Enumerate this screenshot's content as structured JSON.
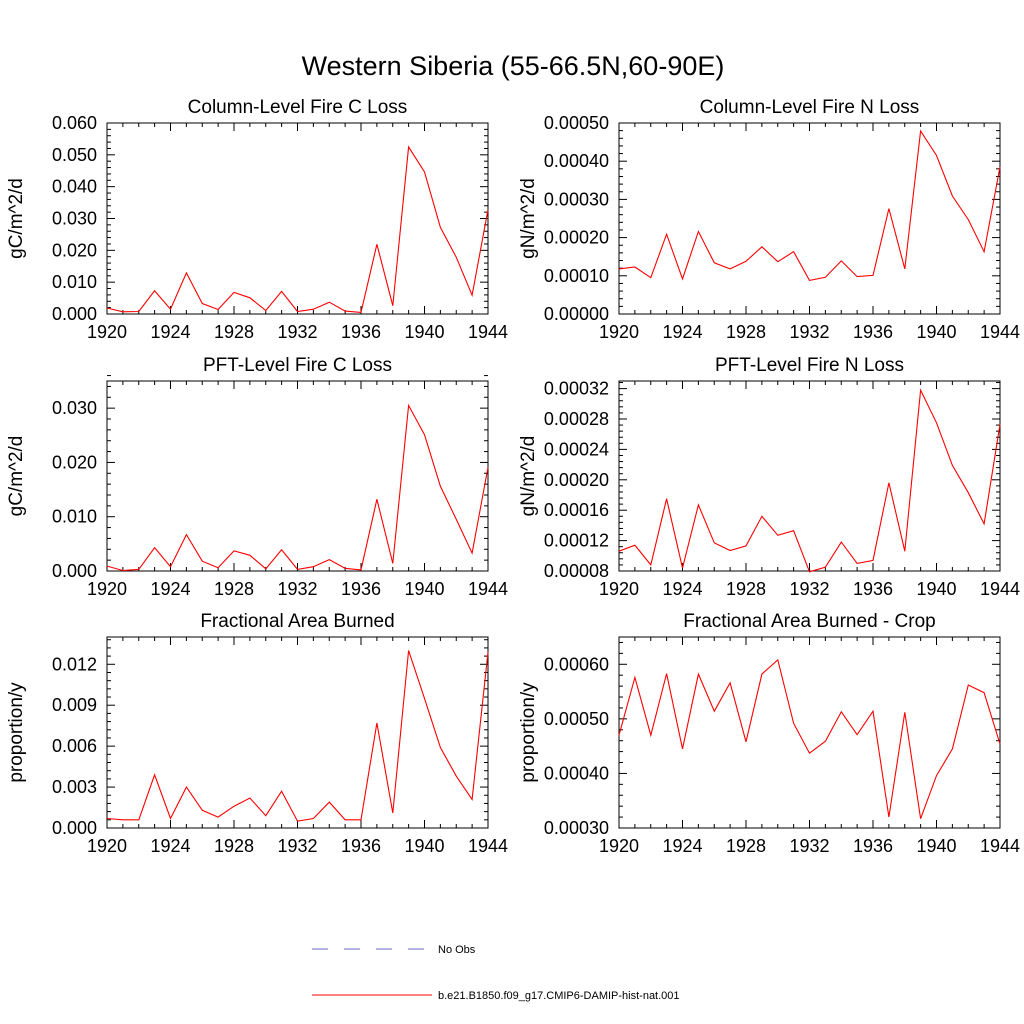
{
  "figure": {
    "title": "Western Siberia (55-66.5N,60-90E)"
  },
  "legend": [
    {
      "label": "No Obs",
      "color": "#6a6ac8",
      "dash": "dashed"
    },
    {
      "label": "b.e21.B1850.f09_g17.CMIP6-DAMIP-hist-nat.001",
      "color": "#ff0000",
      "dash": "solid"
    }
  ],
  "chart_data": [
    {
      "type": "line",
      "title": "Column-Level Fire C Loss",
      "ylabel": "gC/m^2/d",
      "xlabel": "",
      "xlim": [
        1920,
        1944
      ],
      "ylim": [
        0,
        0.06
      ],
      "xticks": [
        1920,
        1924,
        1928,
        1932,
        1936,
        1940,
        1944
      ],
      "yticks": [
        0,
        0.01,
        0.02,
        0.03,
        0.04,
        0.05,
        0.06
      ],
      "ytick_labels": [
        "0.000",
        "0.010",
        "0.020",
        "0.030",
        "0.040",
        "0.050",
        "0.060"
      ],
      "grid": false,
      "series": [
        {
          "name": "b.e21.B1850.f09_g17.CMIP6-DAMIP-hist-nat.001",
          "color": "#ff0000",
          "x": [
            1920,
            1921,
            1922,
            1923,
            1924,
            1925,
            1926,
            1927,
            1928,
            1929,
            1930,
            1931,
            1932,
            1933,
            1934,
            1935,
            1936,
            1937,
            1938,
            1939,
            1940,
            1941,
            1942,
            1943,
            1944
          ],
          "y": [
            0.0019,
            0.0007,
            0.0008,
            0.0073,
            0.0015,
            0.0129,
            0.0033,
            0.0014,
            0.0068,
            0.0051,
            0.0011,
            0.0071,
            0.0008,
            0.0015,
            0.0037,
            0.0009,
            0.0005,
            0.0219,
            0.0026,
            0.0525,
            0.0446,
            0.0272,
            0.0178,
            0.0059,
            0.0328
          ]
        }
      ]
    },
    {
      "type": "line",
      "title": "Column-Level Fire N Loss",
      "ylabel": "gN/m^2/d",
      "xlabel": "",
      "xlim": [
        1920,
        1944
      ],
      "ylim": [
        0,
        0.0005
      ],
      "xticks": [
        1920,
        1924,
        1928,
        1932,
        1936,
        1940,
        1944
      ],
      "yticks": [
        0,
        0.0001,
        0.0002,
        0.0003,
        0.0004,
        0.0005
      ],
      "ytick_labels": [
        "0.00000",
        "0.00010",
        "0.00020",
        "0.00030",
        "0.00040",
        "0.00050"
      ],
      "grid": false,
      "series": [
        {
          "name": "b.e21.B1850.f09_g17.CMIP6-DAMIP-hist-nat.001",
          "color": "#ff0000",
          "x": [
            1920,
            1921,
            1922,
            1923,
            1924,
            1925,
            1926,
            1927,
            1928,
            1929,
            1930,
            1931,
            1932,
            1933,
            1934,
            1935,
            1936,
            1937,
            1938,
            1939,
            1940,
            1941,
            1942,
            1943,
            1944
          ],
          "y": [
            0.000118,
            0.000123,
            9.5e-05,
            0.000209,
            9.2e-05,
            0.000216,
            0.000134,
            0.000118,
            0.000138,
            0.000176,
            0.000137,
            0.000163,
            8.8e-05,
            9.6e-05,
            0.000139,
            9.8e-05,
            0.000101,
            0.000276,
            0.000118,
            0.000479,
            0.000415,
            0.000309,
            0.000247,
            0.000163,
            0.000385
          ]
        }
      ]
    },
    {
      "type": "line",
      "title": "PFT-Level Fire C Loss",
      "ylabel": "gC/m^2/d",
      "xlabel": "",
      "xlim": [
        1920,
        1944
      ],
      "ylim": [
        0,
        0.035
      ],
      "xticks": [
        1920,
        1924,
        1928,
        1932,
        1936,
        1940,
        1944
      ],
      "yticks": [
        0,
        0.01,
        0.02,
        0.03
      ],
      "ytick_labels": [
        "0.000",
        "0.010",
        "0.020",
        "0.030"
      ],
      "grid": false,
      "series": [
        {
          "name": "b.e21.B1850.f09_g17.CMIP6-DAMIP-hist-nat.001",
          "color": "#ff0000",
          "x": [
            1920,
            1921,
            1922,
            1923,
            1924,
            1925,
            1926,
            1927,
            1928,
            1929,
            1930,
            1931,
            1932,
            1933,
            1934,
            1935,
            1936,
            1937,
            1938,
            1939,
            1940,
            1941,
            1942,
            1943,
            1944
          ],
          "y": [
            0.0009,
            0.0001,
            0.0003,
            0.0043,
            0.0008,
            0.0067,
            0.0018,
            0.0006,
            0.0037,
            0.0029,
            0.0004,
            0.0039,
            0.0003,
            0.0008,
            0.0021,
            0.0005,
            0.0002,
            0.0132,
            0.0014,
            0.0305,
            0.0251,
            0.0156,
            0.0095,
            0.0033,
            0.0191
          ]
        }
      ]
    },
    {
      "type": "line",
      "title": "PFT-Level Fire N Loss",
      "ylabel": "gN/m^2/d",
      "xlabel": "",
      "xlim": [
        1920,
        1944
      ],
      "ylim": [
        8e-05,
        0.00033
      ],
      "xticks": [
        1920,
        1924,
        1928,
        1932,
        1936,
        1940,
        1944
      ],
      "yticks": [
        8e-05,
        0.00012,
        0.00016,
        0.0002,
        0.00024,
        0.00028,
        0.00032
      ],
      "ytick_labels": [
        "0.00008",
        "0.00012",
        "0.00016",
        "0.00020",
        "0.00024",
        "0.00028",
        "0.00032"
      ],
      "grid": false,
      "series": [
        {
          "name": "b.e21.B1850.f09_g17.CMIP6-DAMIP-hist-nat.001",
          "color": "#ff0000",
          "x": [
            1920,
            1921,
            1922,
            1923,
            1924,
            1925,
            1926,
            1927,
            1928,
            1929,
            1930,
            1931,
            1932,
            1933,
            1934,
            1935,
            1936,
            1937,
            1938,
            1939,
            1940,
            1941,
            1942,
            1943,
            1944
          ],
          "y": [
            0.000106,
            0.000114,
            8.8e-05,
            0.000175,
            8.4e-05,
            0.000167,
            0.000117,
            0.000107,
            0.000113,
            0.000152,
            0.000127,
            0.000133,
            7.9e-05,
            8.5e-05,
            0.000118,
            9e-05,
            9.4e-05,
            0.000196,
            0.000106,
            0.000318,
            0.000275,
            0.000219,
            0.000183,
            0.000142,
            0.000273
          ]
        }
      ]
    },
    {
      "type": "line",
      "title": "Fractional Area Burned",
      "ylabel": "proportion/y",
      "xlabel": "",
      "xlim": [
        1920,
        1944
      ],
      "ylim": [
        0,
        0.014
      ],
      "xticks": [
        1920,
        1924,
        1928,
        1932,
        1936,
        1940,
        1944
      ],
      "yticks": [
        0,
        0.003,
        0.006,
        0.009,
        0.012
      ],
      "ytick_labels": [
        "0.000",
        "0.003",
        "0.006",
        "0.009",
        "0.012"
      ],
      "grid": false,
      "series": [
        {
          "name": "b.e21.B1850.f09_g17.CMIP6-DAMIP-hist-nat.001",
          "color": "#ff0000",
          "x": [
            1920,
            1921,
            1922,
            1923,
            1924,
            1925,
            1926,
            1927,
            1928,
            1929,
            1930,
            1931,
            1932,
            1933,
            1934,
            1935,
            1936,
            1937,
            1938,
            1939,
            1940,
            1941,
            1942,
            1943,
            1944
          ],
          "y": [
            0.0007,
            0.0006,
            0.0006,
            0.0039,
            0.0007,
            0.003,
            0.0013,
            0.0008,
            0.0016,
            0.0022,
            0.0009,
            0.0027,
            0.0005,
            0.0007,
            0.0019,
            0.0006,
            0.0006,
            0.0077,
            0.0011,
            0.013,
            0.0095,
            0.0059,
            0.0038,
            0.0021,
            0.0129
          ]
        }
      ]
    },
    {
      "type": "line",
      "title": "Fractional Area Burned - Crop",
      "ylabel": "proportion/y",
      "xlabel": "",
      "xlim": [
        1920,
        1944
      ],
      "ylim": [
        0.0003,
        0.00065
      ],
      "xticks": [
        1920,
        1924,
        1928,
        1932,
        1936,
        1940,
        1944
      ],
      "yticks": [
        0.0003,
        0.0004,
        0.0005,
        0.0006
      ],
      "ytick_labels": [
        "0.00030",
        "0.00040",
        "0.00050",
        "0.00060"
      ],
      "grid": false,
      "series": [
        {
          "name": "b.e21.B1850.f09_g17.CMIP6-DAMIP-hist-nat.001",
          "color": "#ff0000",
          "x": [
            1920,
            1921,
            1922,
            1923,
            1924,
            1925,
            1926,
            1927,
            1928,
            1929,
            1930,
            1931,
            1932,
            1933,
            1934,
            1935,
            1936,
            1937,
            1938,
            1939,
            1940,
            1941,
            1942,
            1943,
            1944
          ],
          "y": [
            0.00047,
            0.000576,
            0.00047,
            0.000583,
            0.000445,
            0.000582,
            0.000514,
            0.000566,
            0.000458,
            0.000582,
            0.000608,
            0.000492,
            0.000437,
            0.000459,
            0.000513,
            0.000471,
            0.000514,
            0.00032,
            0.000512,
            0.000317,
            0.000396,
            0.000445,
            0.000562,
            0.000548,
            0.000454
          ]
        }
      ]
    }
  ]
}
